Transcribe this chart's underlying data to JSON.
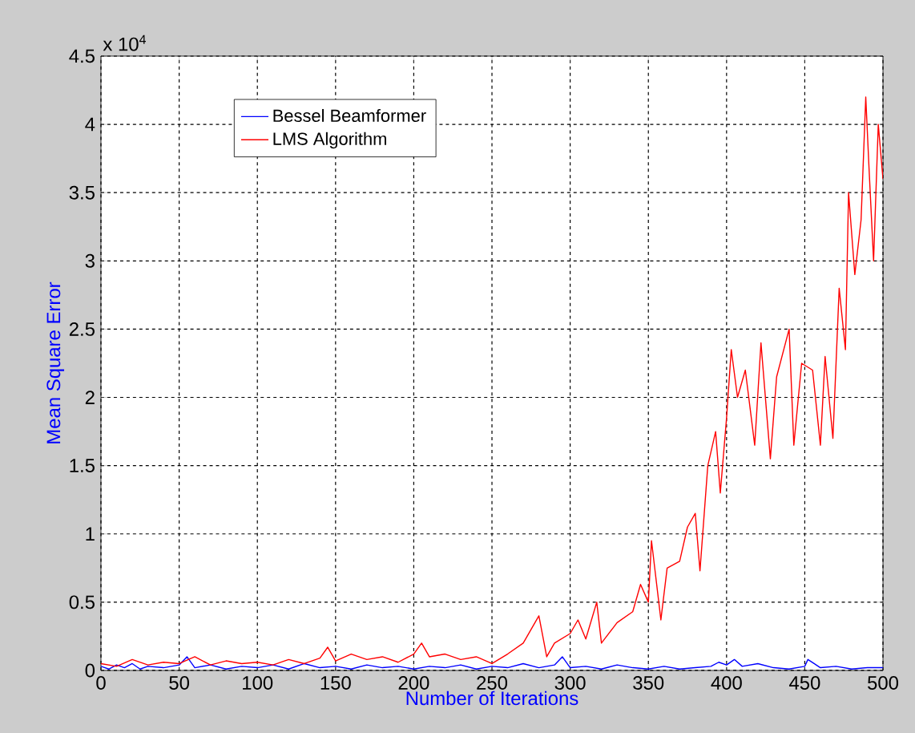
{
  "chart_data": {
    "type": "line",
    "xlabel": "Number of Iterations",
    "ylabel": "Mean Square Error",
    "annotations": [
      "x 10$^{4}$"
    ],
    "xlim": [
      0,
      500
    ],
    "xticks": [
      0,
      50,
      100,
      150,
      200,
      250,
      300,
      350,
      400,
      450,
      500
    ],
    "ylim": [
      0,
      4.5
    ],
    "yticks": [
      0,
      0.5,
      1,
      1.5,
      2,
      2.5,
      3,
      3.5,
      4,
      4.5
    ],
    "grid": true,
    "legend": "top left",
    "series": [
      {
        "name": "Bessel Beamformer",
        "color": "#0000ff",
        "x": [
          0,
          5,
          10,
          15,
          20,
          25,
          30,
          40,
          50,
          55,
          60,
          70,
          80,
          90,
          100,
          110,
          120,
          130,
          140,
          150,
          160,
          170,
          180,
          190,
          200,
          210,
          220,
          230,
          240,
          250,
          260,
          270,
          280,
          290,
          295,
          300,
          310,
          320,
          330,
          340,
          350,
          360,
          370,
          380,
          390,
          395,
          400,
          405,
          410,
          420,
          430,
          440,
          450,
          452,
          460,
          470,
          480,
          490,
          500
        ],
        "values": [
          0.03,
          0.01,
          0.04,
          0.02,
          0.05,
          0.01,
          0.03,
          0.02,
          0.04,
          0.1,
          0.02,
          0.04,
          0.01,
          0.03,
          0.02,
          0.04,
          0.01,
          0.05,
          0.02,
          0.03,
          0.01,
          0.04,
          0.02,
          0.03,
          0.01,
          0.03,
          0.02,
          0.04,
          0.01,
          0.03,
          0.02,
          0.05,
          0.02,
          0.04,
          0.1,
          0.02,
          0.03,
          0.01,
          0.04,
          0.02,
          0.01,
          0.03,
          0.01,
          0.02,
          0.03,
          0.06,
          0.04,
          0.08,
          0.03,
          0.05,
          0.02,
          0.01,
          0.03,
          0.08,
          0.02,
          0.03,
          0.01,
          0.02,
          0.02
        ]
      },
      {
        "name": "LMS Algorithm",
        "color": "#ff0000",
        "x": [
          0,
          10,
          20,
          30,
          40,
          50,
          60,
          70,
          80,
          90,
          100,
          110,
          120,
          130,
          140,
          145,
          150,
          160,
          170,
          180,
          190,
          200,
          205,
          210,
          220,
          230,
          240,
          250,
          260,
          270,
          280,
          285,
          290,
          300,
          305,
          310,
          317,
          320,
          330,
          340,
          345,
          350,
          352,
          358,
          362,
          370,
          375,
          380,
          383,
          388,
          393,
          396,
          400,
          403,
          407,
          412,
          418,
          422,
          428,
          432,
          440,
          443,
          448,
          455,
          460,
          463,
          468,
          472,
          476,
          478,
          482,
          486,
          489,
          491,
          494,
          497,
          500
        ],
        "values": [
          0.05,
          0.03,
          0.08,
          0.04,
          0.06,
          0.05,
          0.1,
          0.04,
          0.07,
          0.05,
          0.06,
          0.04,
          0.08,
          0.05,
          0.09,
          0.17,
          0.07,
          0.12,
          0.08,
          0.1,
          0.06,
          0.12,
          0.2,
          0.1,
          0.12,
          0.08,
          0.1,
          0.05,
          0.12,
          0.2,
          0.4,
          0.1,
          0.2,
          0.27,
          0.37,
          0.23,
          0.5,
          0.2,
          0.35,
          0.43,
          0.63,
          0.5,
          0.95,
          0.37,
          0.75,
          0.8,
          1.05,
          1.15,
          0.73,
          1.5,
          1.75,
          1.3,
          1.85,
          2.35,
          2.0,
          2.2,
          1.65,
          2.4,
          1.55,
          2.15,
          2.5,
          1.65,
          2.25,
          2.2,
          1.65,
          2.3,
          1.7,
          2.8,
          2.35,
          3.5,
          2.9,
          3.3,
          4.2,
          3.7,
          3.0,
          4.0,
          3.6
        ]
      }
    ]
  }
}
